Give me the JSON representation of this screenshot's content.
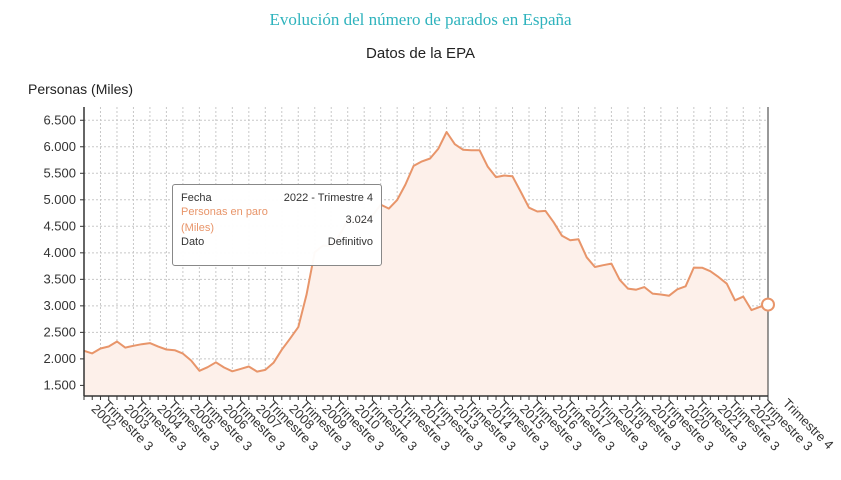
{
  "chart_data": {
    "type": "area",
    "title": "Evolución del número de parados en España",
    "subtitle": "Datos de la EPA",
    "ylabel": "Personas (Miles)",
    "xlabel": "",
    "ylim": [
      1300,
      6750
    ],
    "yticks": [
      "1.500",
      "2.000",
      "2.500",
      "3.000",
      "3.500",
      "4.000",
      "4.500",
      "5.000",
      "5.500",
      "6.000",
      "6.500"
    ],
    "ytick_values": [
      1500,
      2000,
      2500,
      3000,
      3500,
      4000,
      4500,
      5000,
      5500,
      6000,
      6500
    ],
    "grid": true,
    "color": "#e8956a",
    "fill_color": "#fdf0ea",
    "x_start": "2002 - Trimestre 1",
    "x_end": "2022 - Trimestre 4",
    "xtick_labels": [
      "2002 Trimestre 3",
      "2003 Trimestre 3",
      "2004 Trimestre 3",
      "2005 Trimestre 3",
      "2006 Trimestre 3",
      "2007 Trimestre 3",
      "2008 Trimestre 3",
      "2009 Trimestre 3",
      "2010 Trimestre 3",
      "2011 Trimestre 3",
      "2012 Trimestre 3",
      "2013 Trimestre 3",
      "2014 Trimestre 3",
      "2015 Trimestre 3",
      "2016 Trimestre 3",
      "2017 Trimestre 3",
      "2018 Trimestre 3",
      "2019 Trimestre 3",
      "2020 Trimestre 3",
      "2021 Trimestre 3",
      "2022 Trimestre 3",
      "Trimestre 4"
    ],
    "values": [
      2152,
      2103,
      2196,
      2233,
      2328,
      2213,
      2246,
      2276,
      2297,
      2232,
      2177,
      2163,
      2100,
      1969,
      1775,
      1844,
      1935,
      1837,
      1766,
      1811,
      1857,
      1760,
      1792,
      1927,
      2174,
      2381,
      2599,
      3208,
      4010,
      4138,
      4123,
      4335,
      4612,
      4646,
      4575,
      4697,
      4910,
      4834,
      4998,
      5287,
      5640,
      5724,
      5778,
      5965,
      6278,
      6048,
      5943,
      5936,
      5933,
      5623,
      5428,
      5458,
      5444,
      5149,
      4851,
      4780,
      4791,
      4575,
      4321,
      4238,
      4255,
      3915,
      3732,
      3767,
      3796,
      3491,
      3326,
      3304,
      3354,
      3231,
      3214,
      3191,
      3313,
      3368,
      3722,
      3720,
      3654,
      3543,
      3417,
      3104,
      3175,
      2919,
      2980,
      3024
    ]
  },
  "tooltip": {
    "fecha_label": "Fecha",
    "fecha_value": "2022 - Trimestre 4",
    "series_label": "Personas en paro (Miles)",
    "series_value": "3.024",
    "dato_label": "Dato",
    "dato_value": "Definitivo"
  }
}
